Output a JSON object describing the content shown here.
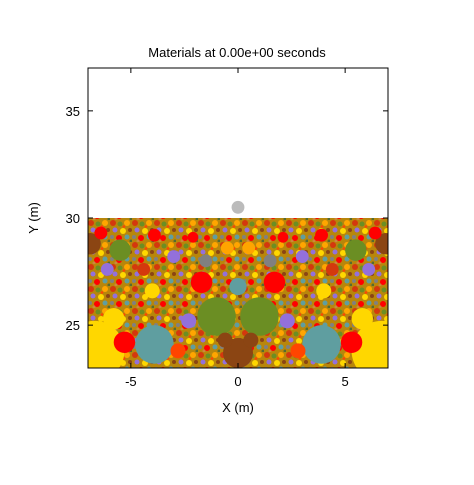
{
  "chart_data": {
    "type": "scatter",
    "title": "Materials at 0.00e+00 seconds",
    "xlabel": "X (m)",
    "ylabel": "Y (m)",
    "xlim": [
      -7,
      7
    ],
    "ylim": [
      23,
      37
    ],
    "xticks": [
      {
        "value": -5,
        "label": "-5"
      },
      {
        "value": 0,
        "label": "0"
      },
      {
        "value": 5,
        "label": "5"
      }
    ],
    "yticks": [
      {
        "value": 25,
        "label": "25"
      },
      {
        "value": 30,
        "label": "30"
      },
      {
        "value": 35,
        "label": "35"
      }
    ],
    "grid": false,
    "legend": "none",
    "material_colors": [
      "#d4380d",
      "#ff0000",
      "#6b8e23",
      "#8b4513",
      "#ffa500",
      "#ffd700",
      "#5f9ea0",
      "#9370db",
      "#808080",
      "#556b2f",
      "#ff4500",
      "#b8860b",
      "#cd853f"
    ],
    "bed": {
      "x_range": [
        -7,
        7
      ],
      "top_y": 30,
      "bottom_y": 23,
      "fill": "#b8860b"
    },
    "projectile": {
      "x": 0,
      "y": 30.5,
      "r": 0.3,
      "color": "#bbbbbb"
    },
    "particles": [
      {
        "x": -6.7,
        "y": 23.8,
        "r": 1.4,
        "c": "#ffd700"
      },
      {
        "x": 6.7,
        "y": 23.8,
        "r": 1.4,
        "c": "#ffd700"
      },
      {
        "x": -3.9,
        "y": 24.1,
        "r": 0.9,
        "c": "#5f9ea0"
      },
      {
        "x": 3.9,
        "y": 24.1,
        "r": 0.9,
        "c": "#5f9ea0"
      },
      {
        "x": -5.3,
        "y": 24.2,
        "r": 0.5,
        "c": "#ff0000"
      },
      {
        "x": 5.3,
        "y": 24.2,
        "r": 0.5,
        "c": "#ff0000"
      },
      {
        "x": -1.0,
        "y": 25.4,
        "r": 0.9,
        "c": "#6b8e23"
      },
      {
        "x": 1.0,
        "y": 25.4,
        "r": 0.9,
        "c": "#6b8e23"
      },
      {
        "x": 0,
        "y": 23.7,
        "r": 0.7,
        "c": "#8b4513"
      },
      {
        "x": -1.7,
        "y": 27.0,
        "r": 0.5,
        "c": "#ff0000"
      },
      {
        "x": 1.7,
        "y": 27.0,
        "r": 0.5,
        "c": "#ff0000"
      },
      {
        "x": 0,
        "y": 26.8,
        "r": 0.4,
        "c": "#5f9ea0"
      },
      {
        "x": -5.8,
        "y": 25.3,
        "r": 0.5,
        "c": "#ffd700"
      },
      {
        "x": 5.8,
        "y": 25.3,
        "r": 0.5,
        "c": "#ffd700"
      },
      {
        "x": -5.5,
        "y": 28.5,
        "r": 0.5,
        "c": "#6b8e23"
      },
      {
        "x": 5.5,
        "y": 28.5,
        "r": 0.5,
        "c": "#6b8e23"
      },
      {
        "x": -6.9,
        "y": 28.8,
        "r": 0.5,
        "c": "#8b4513"
      },
      {
        "x": 6.9,
        "y": 28.8,
        "r": 0.5,
        "c": "#8b4513"
      },
      {
        "x": -6.4,
        "y": 29.3,
        "r": 0.3,
        "c": "#ff0000"
      },
      {
        "x": 6.4,
        "y": 29.3,
        "r": 0.3,
        "c": "#ff0000"
      },
      {
        "x": -3.9,
        "y": 29.2,
        "r": 0.3,
        "c": "#ff0000"
      },
      {
        "x": 3.9,
        "y": 29.2,
        "r": 0.3,
        "c": "#ff0000"
      },
      {
        "x": -0.5,
        "y": 28.6,
        "r": 0.3,
        "c": "#ffa500"
      },
      {
        "x": 0.5,
        "y": 28.6,
        "r": 0.3,
        "c": "#ffa500"
      },
      {
        "x": -4.0,
        "y": 26.6,
        "r": 0.35,
        "c": "#ffd700"
      },
      {
        "x": 4.0,
        "y": 26.6,
        "r": 0.35,
        "c": "#ffd700"
      },
      {
        "x": -2.3,
        "y": 25.2,
        "r": 0.35,
        "c": "#9370db"
      },
      {
        "x": 2.3,
        "y": 25.2,
        "r": 0.35,
        "c": "#9370db"
      },
      {
        "x": -3.0,
        "y": 28.2,
        "r": 0.3,
        "c": "#9370db"
      },
      {
        "x": 3.0,
        "y": 28.2,
        "r": 0.3,
        "c": "#9370db"
      },
      {
        "x": -2.1,
        "y": 29.1,
        "r": 0.25,
        "c": "#ff0000"
      },
      {
        "x": 2.1,
        "y": 29.1,
        "r": 0.25,
        "c": "#ff0000"
      },
      {
        "x": -6.1,
        "y": 27.6,
        "r": 0.3,
        "c": "#9370db"
      },
      {
        "x": 6.1,
        "y": 27.6,
        "r": 0.3,
        "c": "#9370db"
      },
      {
        "x": -4.4,
        "y": 27.6,
        "r": 0.3,
        "c": "#d4380d"
      },
      {
        "x": 4.4,
        "y": 27.6,
        "r": 0.3,
        "c": "#d4380d"
      },
      {
        "x": -0.6,
        "y": 24.3,
        "r": 0.35,
        "c": "#8b4513"
      },
      {
        "x": 0.6,
        "y": 24.3,
        "r": 0.35,
        "c": "#8b4513"
      },
      {
        "x": -2.8,
        "y": 23.8,
        "r": 0.35,
        "c": "#ff4500"
      },
      {
        "x": 2.8,
        "y": 23.8,
        "r": 0.35,
        "c": "#ff4500"
      },
      {
        "x": -1.5,
        "y": 28.0,
        "r": 0.3,
        "c": "#808080"
      },
      {
        "x": 1.5,
        "y": 28.0,
        "r": 0.3,
        "c": "#808080"
      }
    ]
  }
}
